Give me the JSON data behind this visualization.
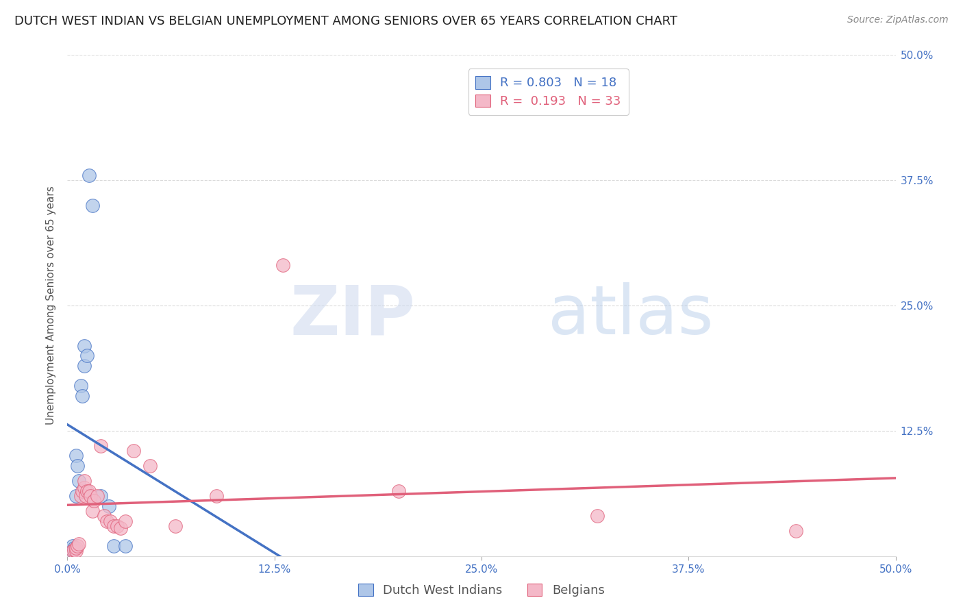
{
  "title": "DUTCH WEST INDIAN VS BELGIAN UNEMPLOYMENT AMONG SENIORS OVER 65 YEARS CORRELATION CHART",
  "source": "Source: ZipAtlas.com",
  "ylabel": "Unemployment Among Seniors over 65 years",
  "xlim": [
    0.0,
    0.5
  ],
  "ylim": [
    0.0,
    0.5
  ],
  "xticks": [
    0.0,
    0.125,
    0.25,
    0.375,
    0.5
  ],
  "yticks": [
    0.0,
    0.125,
    0.25,
    0.375,
    0.5
  ],
  "xtick_labels": [
    "0.0%",
    "12.5%",
    "25.0%",
    "37.5%",
    "50.0%"
  ],
  "blue_R": 0.803,
  "blue_N": 18,
  "pink_R": 0.193,
  "pink_N": 33,
  "blue_color": "#aec6e8",
  "blue_line_color": "#4472c4",
  "pink_color": "#f4b8c8",
  "pink_line_color": "#e0607a",
  "blue_scatter_x": [
    0.003,
    0.003,
    0.004,
    0.005,
    0.005,
    0.006,
    0.007,
    0.008,
    0.009,
    0.01,
    0.01,
    0.012,
    0.013,
    0.015,
    0.02,
    0.025,
    0.028,
    0.035
  ],
  "blue_scatter_y": [
    0.005,
    0.01,
    0.008,
    0.1,
    0.06,
    0.09,
    0.075,
    0.17,
    0.16,
    0.21,
    0.19,
    0.2,
    0.38,
    0.35,
    0.06,
    0.05,
    0.01,
    0.01
  ],
  "pink_scatter_x": [
    0.003,
    0.004,
    0.005,
    0.005,
    0.006,
    0.007,
    0.008,
    0.009,
    0.01,
    0.01,
    0.011,
    0.012,
    0.013,
    0.014,
    0.015,
    0.016,
    0.018,
    0.02,
    0.022,
    0.024,
    0.026,
    0.028,
    0.03,
    0.032,
    0.035,
    0.04,
    0.05,
    0.065,
    0.09,
    0.13,
    0.2,
    0.32,
    0.44
  ],
  "pink_scatter_y": [
    0.005,
    0.006,
    0.005,
    0.008,
    0.01,
    0.012,
    0.06,
    0.065,
    0.068,
    0.075,
    0.06,
    0.065,
    0.065,
    0.06,
    0.045,
    0.055,
    0.06,
    0.11,
    0.04,
    0.035,
    0.035,
    0.03,
    0.03,
    0.028,
    0.035,
    0.105,
    0.09,
    0.03,
    0.06,
    0.29,
    0.065,
    0.04,
    0.025
  ],
  "watermark_zip": "ZIP",
  "watermark_atlas": "atlas",
  "background_color": "#ffffff",
  "grid_color": "#cccccc",
  "title_fontsize": 13,
  "axis_label_fontsize": 11,
  "tick_fontsize": 11,
  "right_tick_color": "#4472c4",
  "bottom_tick_color": "#4472c4"
}
